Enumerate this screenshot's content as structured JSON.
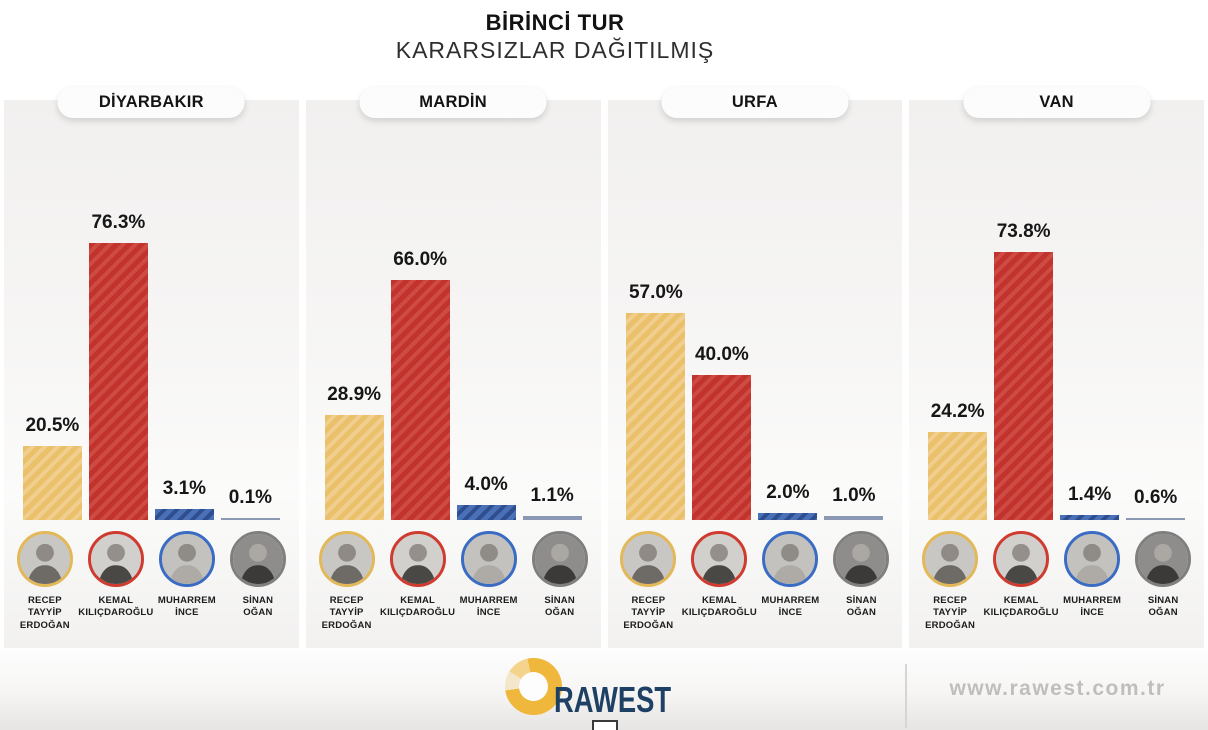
{
  "header": {
    "title": "BİRİNCİ TUR",
    "subtitle": "KARARSIZLAR DAĞITILMIŞ"
  },
  "candidates": [
    {
      "id": "erdogan",
      "name_lines": [
        "RECEP TAYYİP",
        "ERDOĞAN"
      ],
      "ring_color": "#E2B858",
      "bar_base": "#EBC06A",
      "bar_stripe": "#F0CE8E",
      "avatar": {
        "bg": "#c9c7c4",
        "head": "#8f8a85",
        "body": "#6e6a66"
      }
    },
    {
      "id": "kilicdaroglu",
      "name_lines": [
        "KEMAL",
        "KILIÇDAROĞLU"
      ],
      "ring_color": "#D03B2F",
      "bar_base": "#C2332E",
      "bar_stripe": "#CD4B42",
      "avatar": {
        "bg": "#d2d0cd",
        "head": "#948f8a",
        "body": "#4a4845"
      }
    },
    {
      "id": "ince",
      "name_lines": [
        "MUHARREM",
        "İNCE"
      ],
      "ring_color": "#3A6CC4",
      "bar_base": "#4A70B8",
      "bar_stripe": "#2E4E8F",
      "avatar": {
        "bg": "#c4c2bf",
        "head": "#8f8b87",
        "body": "#aeaba7"
      }
    },
    {
      "id": "ogan",
      "name_lines": [
        "SİNAN",
        "OĞAN"
      ],
      "ring_color": "#7F7F7F",
      "bar_base": "#8B99B4",
      "bar_stripe": null,
      "avatar": {
        "bg": "#8f8d8b",
        "head": "#aba7a3",
        "body": "#3c3a38"
      }
    }
  ],
  "chart_data": {
    "type": "bar",
    "title": "BİRİNCİ TUR",
    "subtitle": "KARARSIZLAR DAĞITILMIŞ",
    "unit": "%",
    "ylim": [
      0,
      100
    ],
    "grid": false,
    "legend_position": "candidate photos below each panel",
    "categories": [
      "RECEP TAYYİP ERDOĞAN",
      "KEMAL KILIÇDAROĞLU",
      "MUHARREM İNCE",
      "SİNAN OĞAN"
    ],
    "panels": [
      {
        "city": "DİYARBAKIR",
        "values": [
          20.5,
          76.3,
          3.1,
          0.1
        ]
      },
      {
        "city": "MARDİN",
        "values": [
          28.9,
          66.0,
          4.0,
          1.1
        ]
      },
      {
        "city": "URFA",
        "values": [
          57.0,
          40.0,
          2.0,
          1.0
        ]
      },
      {
        "city": "VAN",
        "values": [
          24.2,
          73.8,
          1.4,
          0.6
        ]
      }
    ]
  },
  "footer": {
    "brand": "RAWEST",
    "url": "www.rawest.com.tr"
  },
  "colors": {
    "panel_bg": "#f2f1f0",
    "title_text": "#121212",
    "brand_navy": "#1d4064",
    "brand_gold": "#efb73b",
    "url_gray": "#bfbebd"
  }
}
